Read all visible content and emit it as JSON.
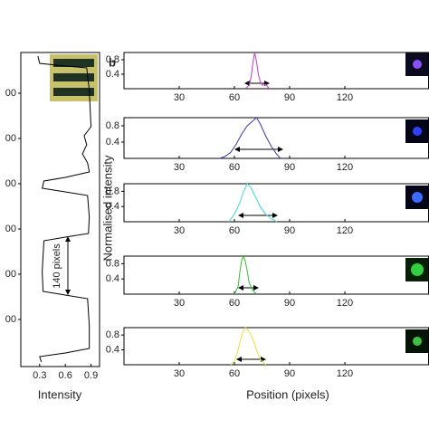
{
  "figure": {
    "panel_label": "b",
    "ylabel": "Normalised intensity",
    "xlabel": "Position (pixels)"
  },
  "chart_data": [
    {
      "type": "line",
      "xlabel": "Intensity",
      "annotation": "140 pixels",
      "color": "#000000",
      "y_inverted": true,
      "xlim": [
        0.08,
        1.0
      ],
      "xticks": [
        0.3,
        0.6,
        0.9
      ],
      "ylim": [
        10,
        704
      ],
      "yticks": [
        {
          "value": 100,
          "label": "00"
        },
        {
          "value": 200,
          "label": "00"
        },
        {
          "value": 300,
          "label": "00"
        },
        {
          "value": 400,
          "label": "00"
        },
        {
          "value": 500,
          "label": "00"
        },
        {
          "value": 600,
          "label": "00"
        }
      ],
      "y": [
        18,
        34,
        38,
        44,
        94,
        174,
        194,
        214,
        234,
        254,
        274,
        286,
        294,
        310,
        318,
        326,
        374,
        410,
        418,
        426,
        494,
        538,
        546,
        554,
        614,
        664,
        674,
        682,
        694
      ],
      "values": [
        0.28,
        0.3,
        0.5,
        0.85,
        0.88,
        0.9,
        0.82,
        0.85,
        0.8,
        0.86,
        0.88,
        0.6,
        0.35,
        0.33,
        0.6,
        0.86,
        0.88,
        0.87,
        0.6,
        0.35,
        0.33,
        0.34,
        0.6,
        0.86,
        0.88,
        0.88,
        0.6,
        0.3,
        0.32
      ]
    },
    {
      "type": "line",
      "color": "#c040c0",
      "xlim": [
        0,
        165.5
      ],
      "xticks": [
        30,
        60,
        90,
        120
      ],
      "ylim": [
        0,
        1
      ],
      "yticks": [
        0.4,
        0.8
      ],
      "x": [
        66,
        68,
        69,
        70,
        71,
        72,
        73,
        74,
        75,
        77,
        79
      ],
      "values": [
        0,
        0.1,
        0.3,
        0.7,
        1.0,
        0.75,
        0.4,
        0.2,
        0.1,
        0.12,
        0
      ]
    },
    {
      "type": "line",
      "color": "#3a3aa0",
      "xlim": [
        0,
        165.5
      ],
      "xticks": [
        30,
        60,
        90,
        120
      ],
      "ylim": [
        0,
        1
      ],
      "yticks": [
        0.4,
        0.8
      ],
      "x": [
        52,
        55,
        58,
        61,
        64,
        67,
        70,
        72,
        74,
        77,
        80,
        83,
        85
      ],
      "values": [
        0,
        0.05,
        0.15,
        0.35,
        0.6,
        0.8,
        0.92,
        1.0,
        0.85,
        0.55,
        0.3,
        0.1,
        0
      ]
    },
    {
      "type": "line",
      "color": "#40d8d8",
      "xlim": [
        0,
        165.5
      ],
      "xticks": [
        30,
        60,
        90,
        120
      ],
      "ylim": [
        0,
        1
      ],
      "yticks": [
        0.4,
        0.8
      ],
      "x": [
        57,
        60,
        63,
        65,
        67,
        69,
        71,
        74,
        77,
        80,
        83
      ],
      "values": [
        0,
        0.2,
        0.5,
        0.8,
        1.0,
        0.9,
        0.7,
        0.4,
        0.2,
        0.08,
        0
      ]
    },
    {
      "type": "line",
      "color": "#30c030",
      "xlim": [
        0,
        165.5
      ],
      "xticks": [
        30,
        60,
        90,
        120
      ],
      "ylim": [
        0,
        1
      ],
      "yticks": [
        0.4,
        0.8
      ],
      "x": [
        60,
        62,
        63,
        64,
        65,
        66,
        67,
        68,
        70,
        72
      ],
      "values": [
        0,
        0.2,
        0.6,
        0.9,
        1.0,
        0.85,
        0.6,
        0.3,
        0.1,
        0
      ]
    },
    {
      "type": "line",
      "color": "#e8e040",
      "xlim": [
        0,
        165.5
      ],
      "xticks": [
        30,
        60,
        90,
        120
      ],
      "ylim": [
        0,
        1
      ],
      "yticks": [
        0.4,
        0.8
      ],
      "x": [
        58,
        60,
        62,
        64,
        66,
        68,
        70,
        72,
        74,
        77
      ],
      "values": [
        0,
        0.1,
        0.4,
        0.8,
        1.0,
        0.9,
        0.7,
        0.4,
        0.15,
        0
      ]
    }
  ]
}
